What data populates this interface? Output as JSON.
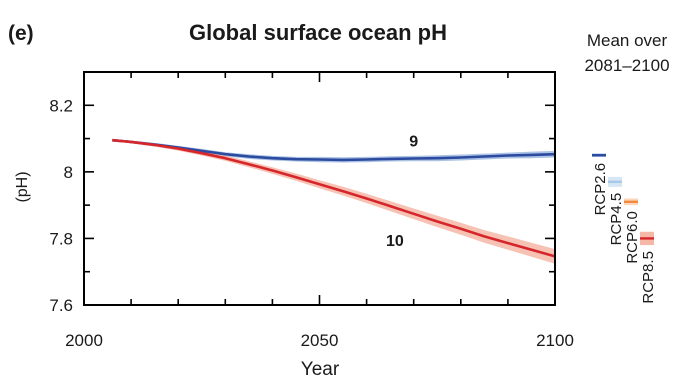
{
  "panel_label": "(e)",
  "chart_data": {
    "type": "line",
    "title": "Global surface ocean pH",
    "xlabel": "Year",
    "ylabel": "(pH)",
    "xlim": [
      2000,
      2100
    ],
    "ylim": [
      7.6,
      8.3
    ],
    "x_ticks": [
      2000,
      2050,
      2100
    ],
    "x_tick_labels": [
      "2000",
      "2050",
      "2100"
    ],
    "y_ticks": [
      7.6,
      7.8,
      8.0,
      8.2
    ],
    "y_tick_labels": [
      "7.6",
      "7.8",
      "8",
      "8.2"
    ],
    "grid": false,
    "series": [
      {
        "key": "rcp26",
        "color": "#2b4aa0",
        "band_color": "#9db8df",
        "count_label": "9",
        "x": [
          2006,
          2010,
          2015,
          2020,
          2025,
          2030,
          2035,
          2040,
          2045,
          2050,
          2055,
          2060,
          2065,
          2070,
          2075,
          2080,
          2085,
          2090,
          2095,
          2100
        ],
        "y": [
          8.095,
          8.09,
          8.082,
          8.073,
          8.063,
          8.053,
          8.046,
          8.041,
          8.038,
          8.037,
          8.036,
          8.037,
          8.039,
          8.04,
          8.041,
          8.043,
          8.046,
          8.049,
          8.051,
          8.053
        ],
        "spread": [
          0.004,
          0.004,
          0.005,
          0.005,
          0.006,
          0.006,
          0.007,
          0.007,
          0.007,
          0.008,
          0.008,
          0.008,
          0.008,
          0.008,
          0.009,
          0.009,
          0.009,
          0.009,
          0.01,
          0.01
        ]
      },
      {
        "key": "rcp85",
        "color": "#d7262b",
        "band_color": "#f5b7a6",
        "count_label": "10",
        "x": [
          2006,
          2010,
          2015,
          2020,
          2025,
          2030,
          2035,
          2040,
          2045,
          2050,
          2055,
          2060,
          2065,
          2070,
          2075,
          2080,
          2085,
          2090,
          2095,
          2100
        ],
        "y": [
          8.095,
          8.09,
          8.081,
          8.07,
          8.056,
          8.041,
          8.023,
          8.004,
          7.984,
          7.963,
          7.942,
          7.92,
          7.897,
          7.874,
          7.851,
          7.829,
          7.806,
          7.786,
          7.766,
          7.746
        ],
        "spread": [
          0.004,
          0.004,
          0.005,
          0.006,
          0.007,
          0.008,
          0.009,
          0.01,
          0.011,
          0.012,
          0.013,
          0.014,
          0.015,
          0.016,
          0.017,
          0.018,
          0.019,
          0.02,
          0.021,
          0.022
        ]
      }
    ],
    "mean_over": {
      "title_lines": [
        "Mean over",
        "2081–2100"
      ],
      "items": [
        {
          "label": "RCP2.6",
          "value": 8.05,
          "low": 8.045,
          "high": 8.055,
          "color": "#2b4aa0",
          "band_color": "#9db8df"
        },
        {
          "label": "RCP4.5",
          "value": 7.97,
          "low": 7.955,
          "high": 7.985,
          "color": "#a8c8e8",
          "band_color": "#d6e6f5"
        },
        {
          "label": "RCP6.0",
          "value": 7.91,
          "low": 7.9,
          "high": 7.92,
          "color": "#f28a3e",
          "band_color": "#fbd7bd"
        },
        {
          "label": "RCP8.5",
          "value": 7.8,
          "low": 7.78,
          "high": 7.82,
          "color": "#d7262b",
          "band_color": "#f5b7a6"
        }
      ]
    }
  }
}
